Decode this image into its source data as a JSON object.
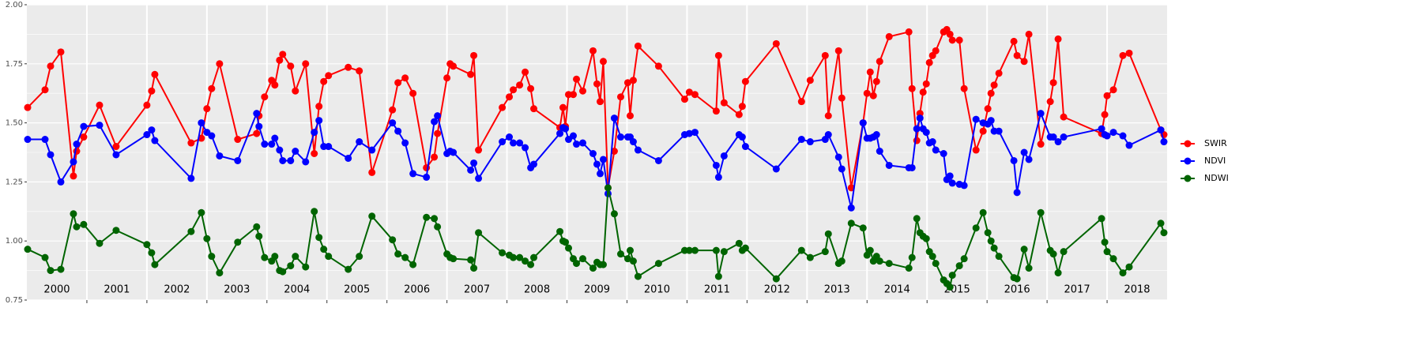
{
  "chart_data": {
    "type": "line",
    "x": [
      2000.013,
      2000.303,
      2000.395,
      2000.566,
      2000.776,
      2000.829,
      2000.947,
      2001.211,
      2001.487,
      2002.0,
      2002.079,
      2002.132,
      2002.737,
      2002.908,
      2003.0,
      2003.079,
      2003.211,
      2003.513,
      2003.829,
      2003.868,
      2003.961,
      2004.079,
      2004.132,
      2004.211,
      2004.263,
      2004.395,
      2004.474,
      2004.645,
      2004.789,
      2004.868,
      2004.947,
      2005.026,
      2005.355,
      2005.539,
      2005.75,
      2006.092,
      2006.184,
      2006.303,
      2006.434,
      2006.658,
      2006.789,
      2006.842,
      2007.0,
      2007.053,
      2007.105,
      2007.395,
      2007.447,
      2007.526,
      2007.921,
      2008.039,
      2008.105,
      2008.211,
      2008.303,
      2008.395,
      2008.447,
      2008.882,
      2008.934,
      2008.974,
      2009.026,
      2009.105,
      2009.158,
      2009.263,
      2009.434,
      2009.5,
      2009.553,
      2009.605,
      2009.684,
      2009.789,
      2009.895,
      2010.013,
      2010.053,
      2010.105,
      2010.184,
      2010.526,
      2010.961,
      2011.039,
      2011.132,
      2011.487,
      2011.526,
      2011.618,
      2011.868,
      2011.921,
      2011.974,
      2012.487,
      2012.908,
      2013.053,
      2013.303,
      2013.355,
      2013.526,
      2013.579,
      2013.737,
      2013.934,
      2014.0,
      2014.053,
      2014.105,
      2014.158,
      2014.211,
      2014.368,
      2014.697,
      2014.75,
      2014.829,
      2014.882,
      2014.934,
      2014.987,
      2015.039,
      2015.092,
      2015.145,
      2015.276,
      2015.329,
      2015.382,
      2015.421,
      2015.539,
      2015.618,
      2015.816,
      2015.934,
      2016.013,
      2016.066,
      2016.118,
      2016.197,
      2016.447,
      2016.5,
      2016.618,
      2016.697,
      2016.895,
      2017.053,
      2017.105,
      2017.184,
      2017.276,
      2017.908,
      2017.961,
      2018.0,
      2018.105,
      2018.263,
      2018.368,
      2018.895,
      2018.947
    ],
    "series": [
      {
        "name": "SWIR",
        "color": "#ff0000",
        "values": [
          1.565,
          1.64,
          1.74,
          1.8,
          1.275,
          1.38,
          1.44,
          1.575,
          1.4,
          1.575,
          1.635,
          1.705,
          1.415,
          1.435,
          1.56,
          1.645,
          1.75,
          1.43,
          1.455,
          1.53,
          1.61,
          1.68,
          1.66,
          1.765,
          1.79,
          1.74,
          1.635,
          1.75,
          1.37,
          1.57,
          1.675,
          1.7,
          1.735,
          1.72,
          1.29,
          1.555,
          1.67,
          1.69,
          1.625,
          1.31,
          1.355,
          1.455,
          1.69,
          1.75,
          1.74,
          1.705,
          1.785,
          1.385,
          1.565,
          1.61,
          1.64,
          1.66,
          1.715,
          1.645,
          1.56,
          1.48,
          1.565,
          1.485,
          1.62,
          1.62,
          1.685,
          1.635,
          1.805,
          1.665,
          1.59,
          1.76,
          1.225,
          1.38,
          1.61,
          1.67,
          1.53,
          1.68,
          1.825,
          1.74,
          1.6,
          1.63,
          1.62,
          1.55,
          1.785,
          1.585,
          1.535,
          1.57,
          1.675,
          1.835,
          1.59,
          1.68,
          1.785,
          1.53,
          1.805,
          1.605,
          1.225,
          1.5,
          1.625,
          1.715,
          1.615,
          1.675,
          1.76,
          1.865,
          1.885,
          1.645,
          1.425,
          1.54,
          1.63,
          1.665,
          1.755,
          1.785,
          1.805,
          1.885,
          1.895,
          1.875,
          1.85,
          1.85,
          1.645,
          1.385,
          1.465,
          1.56,
          1.625,
          1.66,
          1.71,
          1.845,
          1.785,
          1.76,
          1.875,
          1.41,
          1.59,
          1.67,
          1.855,
          1.525,
          1.455,
          1.535,
          1.615,
          1.64,
          1.785,
          1.795,
          1.47,
          1.45
        ]
      },
      {
        "name": "NDVI",
        "color": "#0000ff",
        "values": [
          1.43,
          1.43,
          1.365,
          1.25,
          1.335,
          1.41,
          1.485,
          1.49,
          1.365,
          1.45,
          1.47,
          1.425,
          1.265,
          1.5,
          1.46,
          1.445,
          1.36,
          1.34,
          1.54,
          1.485,
          1.41,
          1.41,
          1.435,
          1.385,
          1.34,
          1.34,
          1.38,
          1.335,
          1.46,
          1.51,
          1.4,
          1.4,
          1.35,
          1.42,
          1.385,
          1.5,
          1.465,
          1.415,
          1.285,
          1.27,
          1.505,
          1.53,
          1.37,
          1.38,
          1.375,
          1.3,
          1.33,
          1.265,
          1.42,
          1.44,
          1.415,
          1.415,
          1.395,
          1.31,
          1.325,
          1.455,
          1.48,
          1.475,
          1.43,
          1.445,
          1.41,
          1.415,
          1.37,
          1.325,
          1.285,
          1.345,
          1.2,
          1.52,
          1.44,
          1.44,
          1.44,
          1.42,
          1.385,
          1.34,
          1.45,
          1.455,
          1.46,
          1.32,
          1.27,
          1.36,
          1.45,
          1.44,
          1.4,
          1.305,
          1.43,
          1.42,
          1.43,
          1.45,
          1.355,
          1.305,
          1.14,
          1.5,
          1.435,
          1.435,
          1.44,
          1.45,
          1.38,
          1.32,
          1.31,
          1.31,
          1.475,
          1.52,
          1.475,
          1.46,
          1.415,
          1.42,
          1.385,
          1.37,
          1.26,
          1.275,
          1.245,
          1.24,
          1.235,
          1.515,
          1.5,
          1.495,
          1.51,
          1.465,
          1.465,
          1.34,
          1.205,
          1.375,
          1.345,
          1.54,
          1.44,
          1.44,
          1.42,
          1.44,
          1.475,
          1.45,
          1.445,
          1.46,
          1.445,
          1.405,
          1.47,
          1.42
        ]
      },
      {
        "name": "NDWI",
        "color": "#006400",
        "values": [
          0.965,
          0.93,
          0.875,
          0.88,
          1.115,
          1.06,
          1.07,
          0.99,
          1.045,
          0.985,
          0.95,
          0.9,
          1.04,
          1.12,
          1.01,
          0.935,
          0.865,
          0.995,
          1.06,
          1.02,
          0.93,
          0.915,
          0.935,
          0.875,
          0.87,
          0.895,
          0.935,
          0.89,
          1.125,
          1.015,
          0.965,
          0.935,
          0.88,
          0.935,
          1.105,
          1.005,
          0.945,
          0.93,
          0.9,
          1.1,
          1.095,
          1.06,
          0.945,
          0.93,
          0.925,
          0.92,
          0.885,
          1.035,
          0.95,
          0.94,
          0.93,
          0.93,
          0.915,
          0.9,
          0.93,
          1.04,
          1.0,
          0.995,
          0.97,
          0.925,
          0.905,
          0.925,
          0.885,
          0.91,
          0.9,
          0.9,
          1.225,
          1.115,
          0.945,
          0.925,
          0.96,
          0.915,
          0.85,
          0.905,
          0.96,
          0.96,
          0.96,
          0.96,
          0.85,
          0.955,
          0.99,
          0.96,
          0.97,
          0.84,
          0.96,
          0.93,
          0.955,
          1.03,
          0.905,
          0.915,
          1.075,
          1.055,
          0.94,
          0.96,
          0.915,
          0.935,
          0.915,
          0.905,
          0.885,
          0.93,
          1.095,
          1.035,
          1.02,
          1.01,
          0.955,
          0.935,
          0.905,
          0.835,
          0.82,
          0.805,
          0.855,
          0.895,
          0.925,
          1.055,
          1.12,
          1.035,
          1.0,
          0.97,
          0.935,
          0.845,
          0.84,
          0.965,
          0.885,
          1.12,
          0.96,
          0.945,
          0.865,
          0.955,
          1.095,
          0.995,
          0.955,
          0.925,
          0.865,
          0.89,
          1.075,
          1.035
        ]
      }
    ],
    "xlim": [
      2000,
      2019
    ],
    "xgrid": [
      2001,
      2002,
      2003,
      2004,
      2005,
      2006,
      2007,
      2008,
      2009,
      2010,
      2011,
      2012,
      2013,
      2014,
      2015,
      2016,
      2017,
      2018
    ],
    "xticks": [
      {
        "value": 2000.5,
        "label": "2000"
      },
      {
        "value": 2001.5,
        "label": "2001"
      },
      {
        "value": 2002.5,
        "label": "2002"
      },
      {
        "value": 2003.5,
        "label": "2003"
      },
      {
        "value": 2004.5,
        "label": "2004"
      },
      {
        "value": 2005.5,
        "label": "2005"
      },
      {
        "value": 2006.5,
        "label": "2006"
      },
      {
        "value": 2007.5,
        "label": "2007"
      },
      {
        "value": 2008.5,
        "label": "2008"
      },
      {
        "value": 2009.5,
        "label": "2009"
      },
      {
        "value": 2010.5,
        "label": "2010"
      },
      {
        "value": 2011.5,
        "label": "2011"
      },
      {
        "value": 2012.5,
        "label": "2012"
      },
      {
        "value": 2013.5,
        "label": "2013"
      },
      {
        "value": 2014.5,
        "label": "2014"
      },
      {
        "value": 2015.5,
        "label": "2015"
      },
      {
        "value": 2016.5,
        "label": "2016"
      },
      {
        "value": 2017.5,
        "label": "2017"
      },
      {
        "value": 2018.5,
        "label": "2018"
      }
    ],
    "ylim": [
      0.75,
      2.0
    ],
    "yticks": [
      0.75,
      {
        "value": 1.0,
        "label": "1.00"
      },
      1.25,
      {
        "value": 1.5,
        "label": "1.50"
      },
      1.75,
      {
        "value": 2.0,
        "label": "2.00"
      }
    ],
    "y_minor_grid": [
      0.875,
      1.125,
      1.375,
      1.625,
      1.875
    ],
    "grid": true,
    "legend": "right"
  }
}
